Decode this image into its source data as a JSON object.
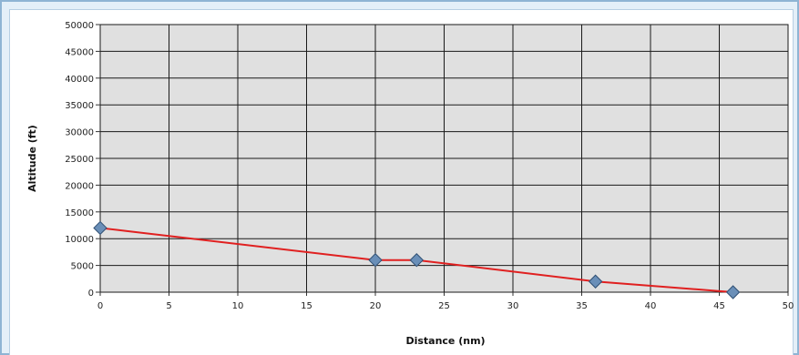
{
  "chart_data": {
    "type": "line",
    "title": "",
    "xlabel": "Distance (nm)",
    "ylabel": "Altitude (ft)",
    "xlim": [
      0,
      50
    ],
    "ylim": [
      0,
      50000
    ],
    "x_ticks": [
      0,
      5,
      10,
      15,
      20,
      25,
      30,
      35,
      40,
      45,
      50
    ],
    "y_ticks": [
      0,
      5000,
      10000,
      15000,
      20000,
      25000,
      30000,
      35000,
      40000,
      45000,
      50000
    ],
    "grid": true,
    "series": [
      {
        "x": [
          0,
          20,
          23,
          36,
          46
        ],
        "y": [
          12000,
          6000,
          6000,
          2000,
          0
        ],
        "line_color": "#e02020",
        "marker": "diamond",
        "marker_color": "#6a8fb8"
      }
    ],
    "plot_background": "#e0e0e0",
    "grid_color": "#1a1a1a"
  }
}
